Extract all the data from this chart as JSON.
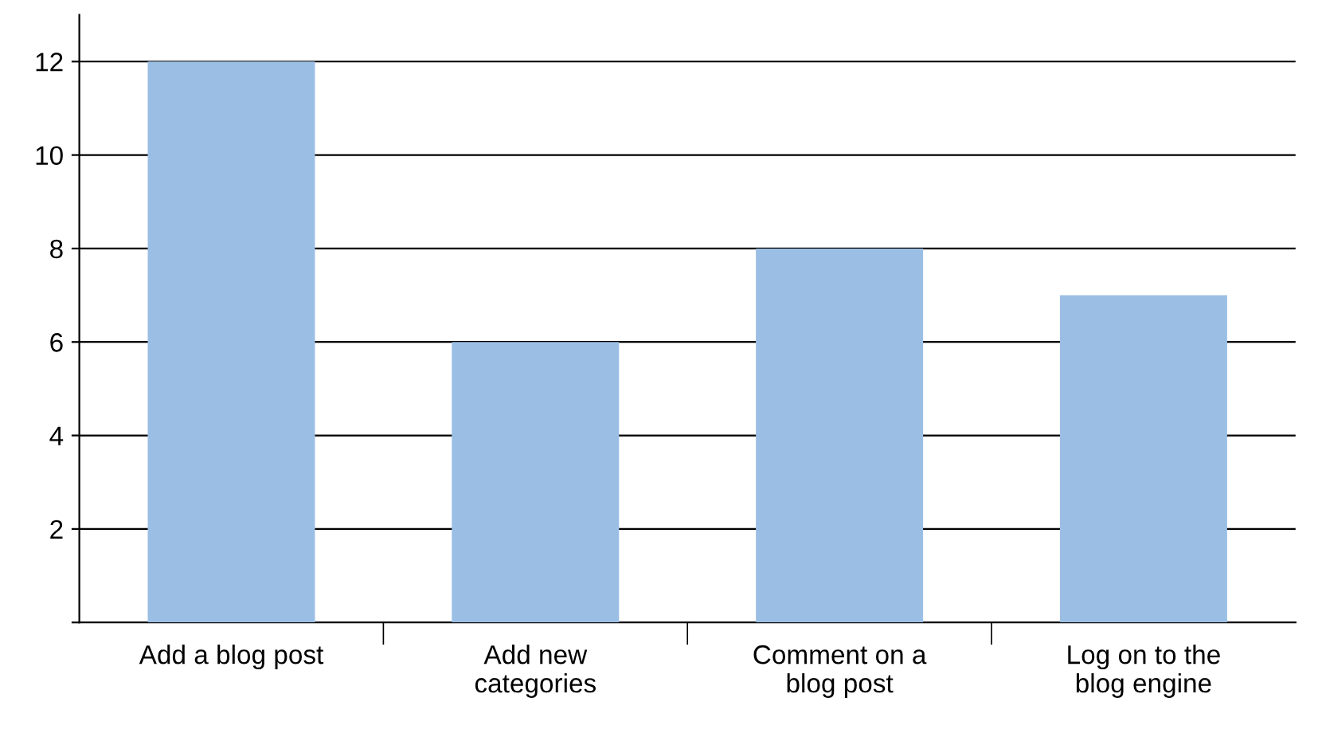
{
  "chart_data": {
    "type": "bar",
    "categories": [
      "Add a blog post",
      "Add new\ncategories",
      "Comment on a\nblog post",
      "Log on to the\nblog engine"
    ],
    "values": [
      12,
      6,
      8,
      7
    ],
    "color": "#9bbfe4",
    "ylim": [
      0,
      13
    ],
    "yticks": [
      {
        "value": 0,
        "label": null
      },
      2,
      4,
      6,
      8,
      10,
      12
    ],
    "grid": "y",
    "legend": false
  }
}
